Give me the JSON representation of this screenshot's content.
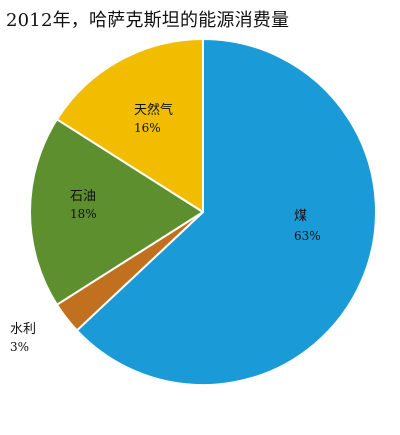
{
  "chart_data": {
    "type": "pie",
    "title": "2012年，哈萨克斯坦的能源消费量",
    "slices": [
      {
        "label": "煤",
        "value": 63,
        "value_text": "63%",
        "color": "#1a9ad6"
      },
      {
        "label": "水利",
        "value": 3,
        "value_text": "3%",
        "color": "#c0701e"
      },
      {
        "label": "石油",
        "value": 18,
        "value_text": "18%",
        "color": "#5d8f2f"
      },
      {
        "label": "天然气",
        "value": 16,
        "value_text": "16%",
        "color": "#f2bd00"
      }
    ],
    "start_angle_deg": 0,
    "direction": "clockwise",
    "slice_border_color": "#ffffff"
  }
}
